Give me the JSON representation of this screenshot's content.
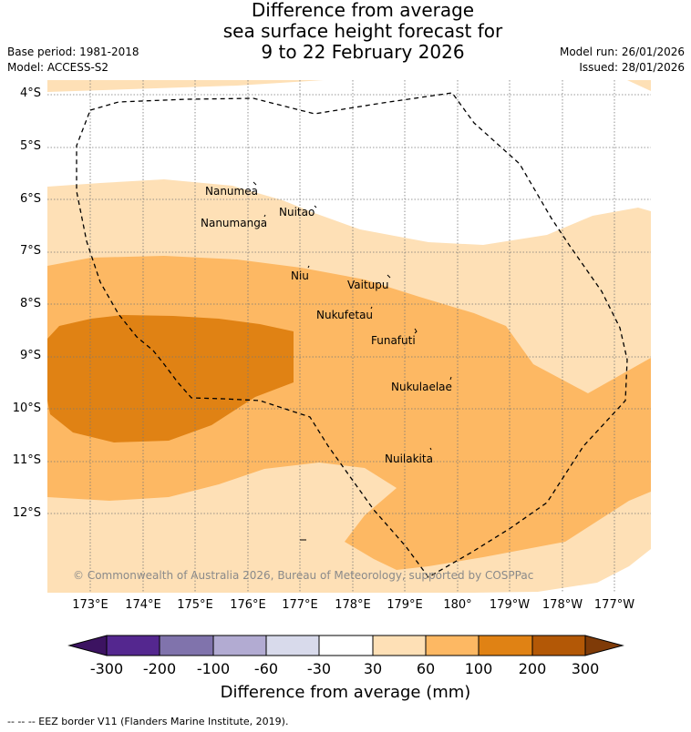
{
  "title": {
    "line1": "Difference from average",
    "line2": "sea surface height forecast for",
    "line3": "9 to 22 February 2026"
  },
  "meta": {
    "base_period": "Base period: 1981-2018",
    "model": "Model: ACCESS-S2",
    "model_run": "Model run: 26/01/2026",
    "issued": "Issued: 28/01/2026"
  },
  "axes": {
    "lat_labels": [
      "4°S",
      "5°S",
      "6°S",
      "7°S",
      "8°S",
      "9°S",
      "10°S",
      "11°S",
      "12°S"
    ],
    "lon_labels": [
      "173°E",
      "174°E",
      "175°E",
      "176°E",
      "177°E",
      "178°E",
      "179°E",
      "180°",
      "179°W",
      "178°W",
      "177°W"
    ]
  },
  "places": [
    {
      "name": "Nanumea"
    },
    {
      "name": "Nuitao"
    },
    {
      "name": "Nanumanga"
    },
    {
      "name": "Niu"
    },
    {
      "name": "Vaitupu"
    },
    {
      "name": "Nukufetau"
    },
    {
      "name": "Funafuti"
    },
    {
      "name": "Nukulaelae"
    },
    {
      "name": "Nuilakita"
    }
  ],
  "copyright": "© Commonwealth of Australia 2026, Bureau of Meteorology, supported by COSPPac",
  "colorbar": {
    "ticks": [
      "-300",
      "-200",
      "-100",
      "-60",
      "-30",
      "30",
      "60",
      "100",
      "200",
      "300"
    ],
    "colors": [
      "#3c1361",
      "#54278f",
      "#8073ac",
      "#b2abd2",
      "#d8daeb",
      "#ffffff",
      "#fee0b6",
      "#fdb863",
      "#e08214",
      "#b35806",
      "#7f3b08"
    ],
    "label": "Difference from average (mm)"
  },
  "footnote": "-- -- -- EEZ border V11 (Flanders Marine Institute, 2019)."
}
